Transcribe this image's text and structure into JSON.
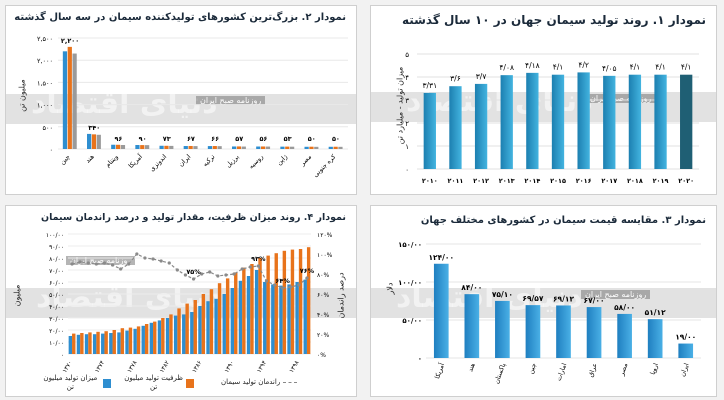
{
  "watermark": {
    "text": "دنیای اقتصاد",
    "small": "روزنامه صبح ایران"
  },
  "colors": {
    "cement_blue": "#2e9ad0",
    "cement_dark": "#1f6f8b",
    "orange": "#e8731b",
    "bar_blue": "#3a9ad6"
  },
  "charts": {
    "production": {
      "title": "نمودار ۱. روند تولید سیمان جهان در ۱۰ سال گذشته",
      "ylabel": "میزان تولید - میلیارد تن",
      "yticks": [
        "۰",
        "۱",
        "۲",
        "۳",
        "۴",
        "۵"
      ],
      "categories": [
        "۲۰۱۰",
        "۲۰۱۱",
        "۲۰۱۲",
        "۲۰۱۳",
        "۲۰۱۴",
        "۲۰۱۵",
        "۲۰۱۶",
        "۲۰۱۷",
        "۲۰۱۸",
        "۲۰۱۹",
        "۲۰۲۰"
      ],
      "labels": [
        "۳/۳۱",
        "۳/۶",
        "۳/۷",
        "۴/۰۸",
        "۴/۱۸",
        "۴/۱",
        "۴/۲",
        "۴/۰۵",
        "۴/۱",
        "۴/۱",
        "۴/۱"
      ]
    },
    "producers": {
      "title": "نمودار ۲. بزرگ‌ترین کشورهای تولیدکننده سیمان در سه سال گذشته",
      "ylabel": "میلیون تن",
      "yticks": [
        "۰",
        "۵۰۰",
        "۱,۰۰۰",
        "۱,۵۰۰",
        "۲,۰۰۰",
        "۲,۵۰۰"
      ],
      "categories": [
        "چین",
        "هند",
        "ویتنام",
        "آمریکا",
        "اندونزی",
        "ایران",
        "ترکیه",
        "برزیل",
        "روسیه",
        "ژاپن",
        "مصر",
        "کره جنوبی"
      ],
      "labels": [
        "۲,۲۰۰",
        "۳۴۰",
        "۹۶",
        "۹۰",
        "۷۳",
        "۶۷",
        "۶۶",
        "۵۷",
        "۵۶",
        "۵۳",
        "۵۰",
        "۵۰"
      ]
    },
    "iran_capacity": {
      "title": "نمودار ۴. روند میزان ظرفیت، مقدار تولید و درصد راندمان سیمان",
      "ylabel_left": "میلیون",
      "ylabel_right": "درصد راندمان",
      "yticks_left": [
        "۰",
        "۱۰/۰۰",
        "۲۰/۰۰",
        "۳۰/۰۰",
        "۴۰/۰۰",
        "۵۰/۰۰",
        "۶۰/۰۰",
        "۷۰/۰۰",
        "۸۰/۰۰",
        "۹۰/۰۰",
        "۱۰۰/۰۰"
      ],
      "yticks_right": [
        "۰%",
        "۲۰%",
        "۴۰%",
        "۶۰%",
        "۸۰%",
        "۱۰۰%",
        "۱۲۰%"
      ],
      "xticks": [
        "۱۳۷۰",
        "۱۳۷۴",
        "۱۳۷۸",
        "۱۳۸۲",
        "۱۳۸۶",
        "۱۳۹۰",
        "۱۳۹۴",
        "۱۳۹۸"
      ],
      "annotations": [
        "۷۵%",
        "۹۳%",
        "۶۴%",
        "۷۶%"
      ],
      "legend": {
        "production": "میزان تولید میلیون تن",
        "capacity": "ظرفیت تولید میلیون تن",
        "efficiency": "راندمان تولید سیمان"
      }
    },
    "prices": {
      "title": "نمودار ۳. مقایسه قیمت سیمان در کشورهای مختلف جهان",
      "ylabel": "دلار",
      "yticks": [
        "۰",
        "۵۰/۰۰",
        "۱۰۰/۰۰",
        "۱۵۰/۰۰"
      ],
      "categories": [
        "آمریکا",
        "هند",
        "پاکستان",
        "چین",
        "امارات",
        "عراق",
        "مصر",
        "اروپا",
        "ایران"
      ],
      "labels": [
        "۱۲۴/۰۰",
        "۸۴/۰۰",
        "۷۵/۱۰",
        "۶۹/۵۷",
        "۶۹/۱۲",
        "۶۷/۰۰",
        "۵۸/۰۰",
        "۵۱/۱۲",
        "۱۹/۰۰"
      ]
    }
  },
  "chart_data": [
    {
      "type": "bar",
      "title": "نمودار ۱. روند تولید سیمان جهان در ۱۰ سال گذشته",
      "ylabel": "میزان تولید - میلیارد تن",
      "categories": [
        "2010",
        "2011",
        "2012",
        "2013",
        "2014",
        "2015",
        "2016",
        "2017",
        "2018",
        "2019",
        "2020"
      ],
      "values": [
        3.31,
        3.6,
        3.7,
        4.08,
        4.18,
        4.1,
        4.2,
        4.05,
        4.1,
        4.1,
        4.1
      ],
      "ylim": [
        0,
        5
      ]
    },
    {
      "type": "bar",
      "title": "نمودار ۲. بزرگ‌ترین کشورهای تولیدکننده سیمان در سه سال گذشته",
      "ylabel": "میلیون تن",
      "categories": [
        "چین",
        "هند",
        "ویتنام",
        "آمریکا",
        "اندونزی",
        "ایران",
        "ترکیه",
        "برزیل",
        "روسیه",
        "ژاپن",
        "مصر",
        "کره جنوبی"
      ],
      "series": [
        {
          "values": [
            2200,
            340,
            96,
            90,
            73,
            67,
            66,
            57,
            56,
            53,
            50,
            50
          ]
        },
        {
          "values": [
            2300,
            330,
            95,
            88,
            72,
            68,
            67,
            58,
            57,
            54,
            52,
            51
          ]
        },
        {
          "values": [
            2150,
            320,
            90,
            87,
            70,
            65,
            64,
            55,
            55,
            52,
            49,
            49
          ]
        }
      ],
      "ylim": [
        0,
        2500
      ]
    },
    {
      "type": "bar",
      "title": "نمودار ۴. روند میزان ظرفیت، مقدار تولید و درصد راندمان سیمان",
      "categories": [
        "1370",
        "1371",
        "1372",
        "1373",
        "1374",
        "1375",
        "1376",
        "1377",
        "1378",
        "1379",
        "1380",
        "1381",
        "1382",
        "1383",
        "1384",
        "1385",
        "1386",
        "1387",
        "1388",
        "1389",
        "1390",
        "1391",
        "1392",
        "1393",
        "1394",
        "1395",
        "1396",
        "1397",
        "1398",
        "1399"
      ],
      "series": [
        {
          "name": "میزان تولید میلیون تن",
          "values": [
            15,
            16,
            16.5,
            16.5,
            17,
            17.5,
            18,
            19.5,
            21,
            23.5,
            26,
            28,
            30,
            32,
            33,
            35,
            40,
            44,
            46,
            50,
            55,
            61,
            65,
            70,
            60,
            58,
            57,
            58,
            60,
            62
          ]
        },
        {
          "name": "ظرفیت تولید میلیون تن",
          "values": [
            17,
            17.5,
            18,
            18.5,
            19,
            20,
            21.5,
            22,
            23,
            25,
            27,
            30,
            33,
            38,
            42,
            45,
            50,
            54,
            59,
            63,
            68,
            72,
            75,
            80,
            82,
            84,
            86,
            87,
            87.5,
            89
          ]
        },
        {
          "name": "راندمان تولید سیمان",
          "values": [
            90,
            92,
            91,
            90,
            91,
            89,
            85,
            90,
            100,
            96,
            95,
            93,
            91,
            84,
            79,
            75,
            80,
            82,
            78,
            79,
            80,
            85,
            87,
            88,
            73,
            69,
            66,
            67,
            69,
            76
          ]
        }
      ],
      "ylim": [
        0,
        100
      ]
    },
    {
      "type": "bar",
      "title": "نمودار ۳. مقایسه قیمت سیمان در کشورهای مختلف جهان",
      "ylabel": "دلار",
      "categories": [
        "آمریکا",
        "هند",
        "پاکستان",
        "چین",
        "امارات",
        "عراق",
        "مصر",
        "اروپا",
        "ایران"
      ],
      "values": [
        124,
        84,
        75.1,
        69.57,
        69.12,
        67,
        58,
        51.12,
        19
      ],
      "ylim": [
        0,
        150
      ]
    }
  ]
}
